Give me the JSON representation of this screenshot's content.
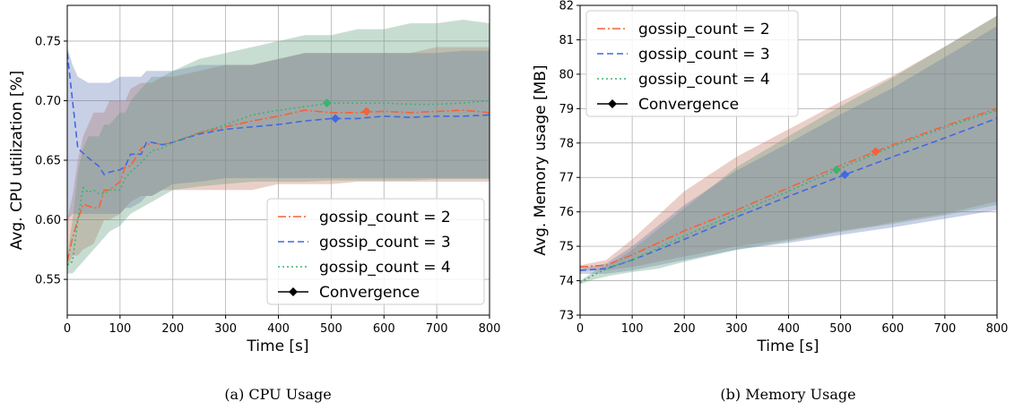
{
  "colors": {
    "gossip2": "#f4623a",
    "gossip3": "#4169e1",
    "gossip4": "#3cb371",
    "convergence": "#000000"
  },
  "chart_data": [
    {
      "type": "line",
      "caption": "(a) CPU Usage",
      "xlabel": "Time [s]",
      "ylabel": "Avg. CPU utilization [%]",
      "xlim": [
        0,
        800
      ],
      "ylim": [
        0.52,
        0.78
      ],
      "xticks": [
        0,
        100,
        200,
        300,
        400,
        500,
        600,
        700,
        800
      ],
      "yticks": [
        0.55,
        0.6,
        0.65,
        0.7,
        0.75
      ],
      "ytick_labels": [
        "0.55",
        "0.60",
        "0.65",
        "0.70",
        "0.75"
      ],
      "grid": true,
      "legend_position": "lower-right",
      "legend": [
        "gossip_count = 2",
        "gossip_count = 3",
        "gossip_count = 4",
        "Convergence"
      ],
      "series": [
        {
          "name": "gossip_count = 2",
          "style": "dashdot",
          "color": "#f4623a",
          "x": [
            0,
            10,
            20,
            30,
            50,
            60,
            70,
            80,
            100,
            110,
            120,
            140,
            160,
            180,
            200,
            250,
            300,
            350,
            400,
            450,
            500,
            550,
            600,
            650,
            700,
            750,
            800
          ],
          "y": [
            0.565,
            0.585,
            0.6,
            0.613,
            0.61,
            0.61,
            0.625,
            0.625,
            0.632,
            0.645,
            0.645,
            0.66,
            0.665,
            0.663,
            0.665,
            0.673,
            0.678,
            0.683,
            0.687,
            0.692,
            0.69,
            0.69,
            0.691,
            0.69,
            0.691,
            0.692,
            0.69
          ],
          "band_upper": [
            0.6,
            0.62,
            0.65,
            0.67,
            0.69,
            0.69,
            0.69,
            0.7,
            0.7,
            0.7,
            0.71,
            0.715,
            0.715,
            0.72,
            0.72,
            0.725,
            0.73,
            0.73,
            0.735,
            0.74,
            0.74,
            0.74,
            0.74,
            0.74,
            0.745,
            0.745,
            0.745
          ],
          "band_lower": [
            0.56,
            0.57,
            0.57,
            0.575,
            0.58,
            0.59,
            0.6,
            0.6,
            0.605,
            0.61,
            0.615,
            0.62,
            0.62,
            0.625,
            0.625,
            0.625,
            0.625,
            0.625,
            0.63,
            0.63,
            0.63,
            0.632,
            0.632,
            0.632,
            0.632,
            0.632,
            0.632
          ]
        },
        {
          "name": "gossip_count = 3",
          "style": "dashed",
          "color": "#4169e1",
          "x": [
            0,
            10,
            20,
            40,
            60,
            70,
            80,
            100,
            110,
            120,
            140,
            150,
            160,
            180,
            200,
            250,
            300,
            350,
            400,
            450,
            500,
            550,
            600,
            650,
            700,
            750,
            800
          ],
          "y": [
            0.74,
            0.7,
            0.66,
            0.652,
            0.645,
            0.638,
            0.64,
            0.642,
            0.645,
            0.655,
            0.655,
            0.665,
            0.665,
            0.663,
            0.665,
            0.672,
            0.676,
            0.678,
            0.68,
            0.683,
            0.685,
            0.685,
            0.687,
            0.686,
            0.687,
            0.687,
            0.688
          ],
          "band_upper": [
            0.745,
            0.73,
            0.72,
            0.715,
            0.715,
            0.715,
            0.715,
            0.72,
            0.72,
            0.72,
            0.72,
            0.725,
            0.725,
            0.725,
            0.725,
            0.73,
            0.73,
            0.73,
            0.735,
            0.74,
            0.74,
            0.74,
            0.74,
            0.74,
            0.74,
            0.742,
            0.742
          ],
          "band_lower": [
            0.6,
            0.605,
            0.605,
            0.605,
            0.605,
            0.605,
            0.605,
            0.605,
            0.61,
            0.61,
            0.615,
            0.62,
            0.62,
            0.625,
            0.63,
            0.632,
            0.635,
            0.635,
            0.635,
            0.635,
            0.635,
            0.635,
            0.635,
            0.635,
            0.635,
            0.635,
            0.635
          ]
        },
        {
          "name": "gossip_count = 4",
          "style": "dotted",
          "color": "#3cb371",
          "x": [
            0,
            10,
            20,
            30,
            40,
            50,
            60,
            70,
            80,
            100,
            110,
            120,
            140,
            160,
            180,
            200,
            250,
            300,
            350,
            400,
            450,
            500,
            550,
            600,
            650,
            700,
            750,
            800
          ],
          "y": [
            0.562,
            0.565,
            0.6,
            0.627,
            0.623,
            0.625,
            0.622,
            0.622,
            0.625,
            0.625,
            0.635,
            0.64,
            0.648,
            0.658,
            0.66,
            0.665,
            0.673,
            0.68,
            0.688,
            0.692,
            0.695,
            0.698,
            0.698,
            0.698,
            0.697,
            0.697,
            0.698,
            0.7
          ],
          "band_upper": [
            0.57,
            0.6,
            0.64,
            0.66,
            0.67,
            0.67,
            0.67,
            0.68,
            0.68,
            0.69,
            0.69,
            0.7,
            0.71,
            0.72,
            0.72,
            0.725,
            0.735,
            0.74,
            0.745,
            0.75,
            0.755,
            0.755,
            0.76,
            0.76,
            0.765,
            0.765,
            0.768,
            0.765
          ],
          "band_lower": [
            0.555,
            0.555,
            0.56,
            0.565,
            0.57,
            0.575,
            0.58,
            0.585,
            0.59,
            0.595,
            0.6,
            0.605,
            0.61,
            0.615,
            0.62,
            0.625,
            0.628,
            0.63,
            0.632,
            0.632,
            0.632,
            0.633,
            0.633,
            0.633,
            0.633,
            0.634,
            0.634,
            0.634
          ]
        }
      ],
      "convergence_points": [
        {
          "series": "gossip_count = 2",
          "x": 567,
          "y": 0.691
        },
        {
          "series": "gossip_count = 3",
          "x": 508,
          "y": 0.685
        },
        {
          "series": "gossip_count = 4",
          "x": 492,
          "y": 0.698
        }
      ]
    },
    {
      "type": "line",
      "caption": "(b) Memory Usage",
      "xlabel": "Time [s]",
      "ylabel": "Avg. Memory usage [MB]",
      "xlim": [
        0,
        800
      ],
      "ylim": [
        73,
        82
      ],
      "xticks": [
        0,
        100,
        200,
        300,
        400,
        500,
        600,
        700,
        800
      ],
      "yticks": [
        73,
        74,
        75,
        76,
        77,
        78,
        79,
        80,
        81,
        82
      ],
      "ytick_labels": [
        "73",
        "74",
        "75",
        "76",
        "77",
        "78",
        "79",
        "80",
        "81",
        "82"
      ],
      "grid": true,
      "legend_position": "upper-left",
      "legend": [
        "gossip_count = 2",
        "gossip_count = 3",
        "gossip_count = 4",
        "Convergence"
      ],
      "series": [
        {
          "name": "gossip_count = 2",
          "style": "dashdot",
          "color": "#f4623a",
          "x": [
            0,
            50,
            100,
            150,
            200,
            300,
            400,
            500,
            567,
            600,
            700,
            800
          ],
          "y": [
            74.4,
            74.45,
            74.75,
            75.1,
            75.45,
            76.05,
            76.7,
            77.35,
            77.75,
            77.95,
            78.5,
            79.0
          ],
          "band_upper": [
            74.45,
            74.6,
            75.2,
            75.9,
            76.6,
            77.6,
            78.4,
            79.2,
            79.7,
            79.95,
            80.8,
            81.7
          ],
          "band_lower": [
            74.3,
            74.3,
            74.4,
            74.55,
            74.7,
            75.0,
            75.2,
            75.45,
            75.6,
            75.7,
            75.95,
            76.3
          ]
        },
        {
          "name": "gossip_count = 3",
          "style": "dashed",
          "color": "#4169e1",
          "x": [
            0,
            50,
            100,
            150,
            200,
            300,
            400,
            508,
            600,
            700,
            800
          ],
          "y": [
            74.3,
            74.35,
            74.6,
            74.9,
            75.2,
            75.85,
            76.45,
            77.08,
            77.6,
            78.15,
            78.72
          ],
          "band_upper": [
            74.35,
            74.5,
            75.0,
            75.6,
            76.2,
            77.2,
            78.0,
            78.9,
            79.6,
            80.5,
            81.4
          ],
          "band_lower": [
            74.2,
            74.2,
            74.3,
            74.45,
            74.6,
            74.9,
            75.1,
            75.35,
            75.55,
            75.8,
            76.05
          ]
        },
        {
          "name": "gossip_count = 4",
          "style": "dotted",
          "color": "#3cb371",
          "x": [
            0,
            30,
            60,
            100,
            150,
            200,
            300,
            400,
            492,
            600,
            700,
            800
          ],
          "y": [
            73.95,
            74.2,
            74.4,
            74.6,
            74.95,
            75.3,
            75.95,
            76.6,
            77.22,
            77.9,
            78.45,
            78.95
          ],
          "band_upper": [
            74.0,
            74.3,
            74.5,
            74.9,
            75.5,
            76.1,
            77.3,
            78.2,
            79.0,
            79.9,
            80.8,
            81.7
          ],
          "band_lower": [
            73.9,
            74.05,
            74.15,
            74.25,
            74.35,
            74.55,
            74.9,
            75.15,
            75.4,
            75.65,
            75.9,
            76.2
          ]
        }
      ],
      "convergence_points": [
        {
          "series": "gossip_count = 2",
          "x": 567,
          "y": 77.75
        },
        {
          "series": "gossip_count = 3",
          "x": 508,
          "y": 77.08
        },
        {
          "series": "gossip_count = 4",
          "x": 492,
          "y": 77.22
        }
      ]
    }
  ]
}
